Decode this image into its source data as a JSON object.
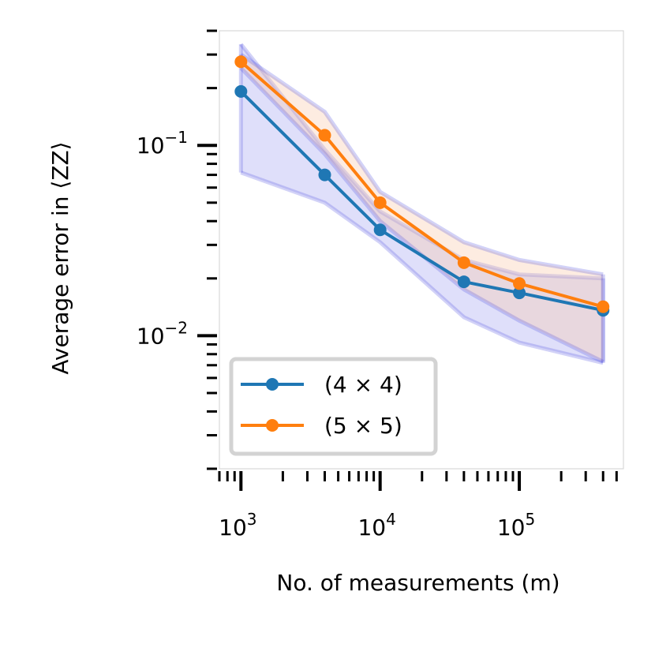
{
  "chart_data": {
    "type": "line",
    "xscale": "log",
    "yscale": "log",
    "x": [
      1000,
      4000,
      10000,
      40000,
      100000,
      400000
    ],
    "xlim": [
      700,
      560000
    ],
    "ylim": [
      0.002,
      0.4
    ],
    "xlabel": "No. of measurements (m)",
    "ylabel": "Average error  in ⟨ZZ⟩",
    "grid": false,
    "legend_placement": "lower-left",
    "x_ticks": [
      {
        "base": "10",
        "exp": "3",
        "value": 1000
      },
      {
        "base": "10",
        "exp": "4",
        "value": 10000
      },
      {
        "base": "10",
        "exp": "5",
        "value": 100000
      }
    ],
    "y_ticks": [
      {
        "base": "10",
        "exp": "−1",
        "value": 0.1
      },
      {
        "base": "10",
        "exp": "−2",
        "value": 0.01
      }
    ],
    "series": [
      {
        "name": "(4 × 4)",
        "color": "#1f77b4",
        "values": [
          0.192,
          0.07,
          0.036,
          0.0192,
          0.0168,
          0.0136
        ],
        "band_low": [
          0.072,
          0.05,
          0.031,
          0.0125,
          0.0092,
          0.0072
        ],
        "band_high": [
          0.34,
          0.095,
          0.045,
          0.025,
          0.021,
          0.02
        ],
        "band_color": "#3a3add"
      },
      {
        "name": "(5 × 5)",
        "color": "#ff7f0e",
        "values": [
          0.275,
          0.113,
          0.05,
          0.0242,
          0.0188,
          0.0142
        ],
        "band_low": [
          0.255,
          0.09,
          0.04,
          0.0175,
          0.012,
          0.0073
        ],
        "band_high": [
          0.3,
          0.15,
          0.057,
          0.031,
          0.025,
          0.021
        ],
        "band_color": "#f9c9a8"
      }
    ]
  }
}
